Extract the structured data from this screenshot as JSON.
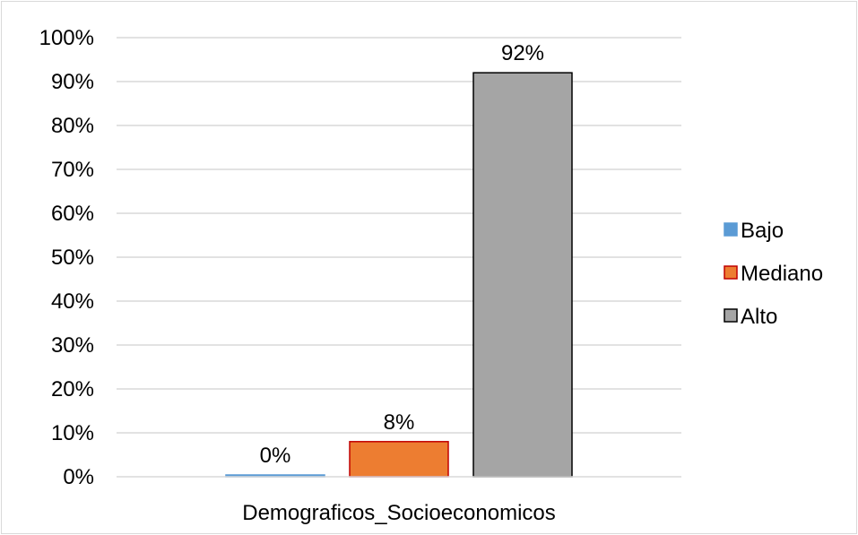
{
  "chart_data": {
    "type": "bar",
    "categories": [
      "Demograficos_Socioeconomicos"
    ],
    "series": [
      {
        "name": "Bajo",
        "values": [
          0
        ],
        "label": "0%",
        "color": "#5b9bd5",
        "stroke": "#5b9bd5"
      },
      {
        "name": "Mediano",
        "values": [
          8
        ],
        "label": "8%",
        "color": "#ed7d31",
        "stroke": "#c00000"
      },
      {
        "name": "Alto",
        "values": [
          92
        ],
        "label": "92%",
        "color": "#a5a5a5",
        "stroke": "#000000"
      }
    ],
    "ylim": [
      0,
      100
    ],
    "yticks": [
      "0%",
      "10%",
      "20%",
      "30%",
      "40%",
      "50%",
      "60%",
      "70%",
      "80%",
      "90%",
      "100%"
    ],
    "grid": true,
    "legend_position": "right"
  }
}
